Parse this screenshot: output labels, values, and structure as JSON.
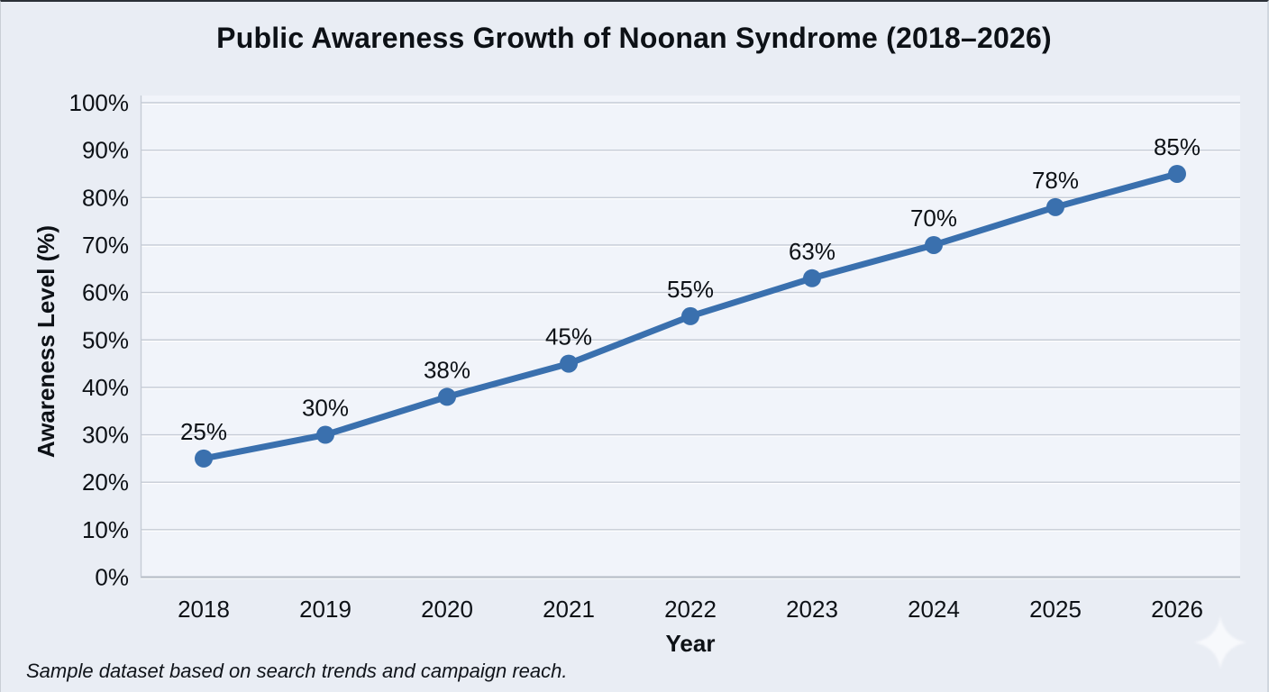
{
  "chart_data": {
    "type": "line",
    "title": "Public Awareness Growth of Noonan Syndrome (2018–2026)",
    "xlabel": "Year",
    "ylabel": "Awareness Level (%)",
    "categories": [
      "2018",
      "2019",
      "2020",
      "2021",
      "2022",
      "2023",
      "2024",
      "2025",
      "2026"
    ],
    "series": [
      {
        "name": "Awareness Level",
        "values": [
          25,
          30,
          38,
          45,
          55,
          63,
          70,
          78,
          85
        ]
      }
    ],
    "unit": "%",
    "ylim": [
      0,
      100
    ],
    "y_tick_step": 10,
    "y_tick_labels": [
      "0%",
      "10%",
      "20%",
      "30%",
      "40%",
      "50%",
      "60%",
      "70%",
      "80%",
      "90%",
      "100%"
    ],
    "data_point_labels": [
      "25%",
      "30%",
      "38%",
      "45%",
      "55%",
      "63%",
      "70%",
      "78%",
      "85%"
    ],
    "grid": true,
    "legend_position": "none",
    "annotations": "Sample dataset based on search trends and campaign reach.",
    "colors": {
      "line": "#3a70ae",
      "marker": "#3a70ae",
      "background": "#e9edf4",
      "plot_background": "#f1f4fa",
      "gridline": "#c6ccd6",
      "axis": "#b3bac4",
      "text": "#0d1116"
    }
  },
  "watermark": {
    "icon": "sparkle-icon"
  }
}
